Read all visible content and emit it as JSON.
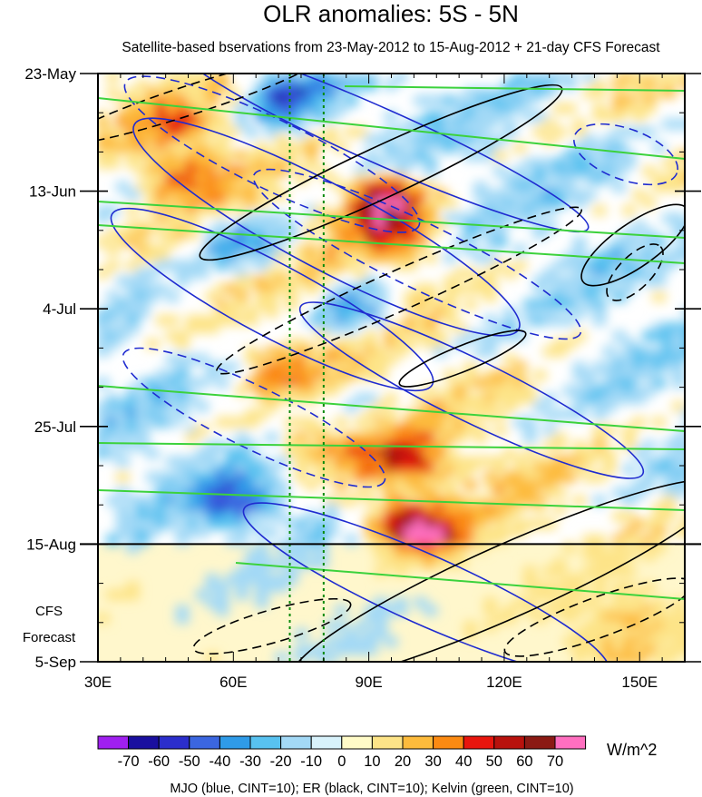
{
  "chart_data": {
    "type": "heatmap",
    "title": "OLR anomalies: 5S - 5N",
    "subtitle": "Satellite-based bservations from 23-May-2012 to 15-Aug-2012 + 21-day CFS Forecast",
    "x_axis": {
      "label": "",
      "range": [
        30,
        160
      ],
      "ticks": [
        {
          "value": 30,
          "label": "30E"
        },
        {
          "value": 60,
          "label": "60E"
        },
        {
          "value": 90,
          "label": "90E"
        },
        {
          "value": 120,
          "label": "120E"
        },
        {
          "value": 150,
          "label": "150E"
        }
      ]
    },
    "y_axis": {
      "label": "",
      "range_days": [
        0,
        105
      ],
      "ticks": [
        {
          "day": 0,
          "label": "23-May"
        },
        {
          "day": 21,
          "label": "13-Jun"
        },
        {
          "day": 42,
          "label": "4-Jul"
        },
        {
          "day": 63,
          "label": "25-Jul"
        },
        {
          "day": 84,
          "label": "15-Aug"
        },
        {
          "day": 105,
          "label": "5-Sep"
        }
      ],
      "forecast_start_day": 84,
      "forecast_label_line1": "CFS",
      "forecast_label_line2": "Forecast"
    },
    "reference_longitudes": [
      72.5,
      80
    ],
    "colorbar": {
      "unit": "W/m^2",
      "levels": [
        -70,
        -60,
        -50,
        -40,
        -30,
        -20,
        -10,
        0,
        10,
        20,
        30,
        40,
        50,
        60,
        70
      ],
      "labels": [
        "-70",
        "-60",
        "-50",
        "-40",
        "-30",
        "-20",
        "-10",
        "0",
        "10",
        "20",
        "30",
        "40",
        "50",
        "60",
        "70"
      ],
      "colors": [
        "#a020f0",
        "#1a0f9f",
        "#2b2ecc",
        "#3b66e0",
        "#2f9be8",
        "#58c2f0",
        "#a3d9f6",
        "#d8f2fb",
        "#fffbc8",
        "#fde488",
        "#fdbb3c",
        "#fb8a12",
        "#e8160e",
        "#b8120d",
        "#8b1a14",
        "#ff6fc0"
      ]
    },
    "anomaly_features": [
      {
        "day": 4,
        "lon": 72,
        "value": -45
      },
      {
        "day": 9,
        "lon": 47,
        "value": 25
      },
      {
        "day": 18,
        "lon": 48,
        "value": 30
      },
      {
        "day": 22,
        "lon": 92,
        "value": 60
      },
      {
        "day": 29,
        "lon": 96,
        "value": 45
      },
      {
        "day": 30,
        "lon": 62,
        "value": -40
      },
      {
        "day": 42,
        "lon": 86,
        "value": -35
      },
      {
        "day": 52,
        "lon": 68,
        "value": 25
      },
      {
        "day": 66,
        "lon": 78,
        "value": 30
      },
      {
        "day": 69,
        "lon": 98,
        "value": 45
      },
      {
        "day": 76,
        "lon": 60,
        "value": -40
      },
      {
        "day": 79,
        "lon": 96,
        "value": 40
      },
      {
        "day": 83,
        "lon": 102,
        "value": 50
      },
      {
        "day": 95,
        "lon": 148,
        "value": 30
      },
      {
        "day": 100,
        "lon": 140,
        "value": 25
      }
    ],
    "filtered_contours": [
      {
        "name": "MJO",
        "color": "blue",
        "cint": 10
      },
      {
        "name": "ER",
        "color": "black",
        "cint": 10
      },
      {
        "name": "Kelvin",
        "color": "green",
        "cint": 10
      }
    ],
    "legend_text": "MJO (blue, CINT=10); ER (black, CINT=10); Kelvin (green, CINT=10)"
  }
}
